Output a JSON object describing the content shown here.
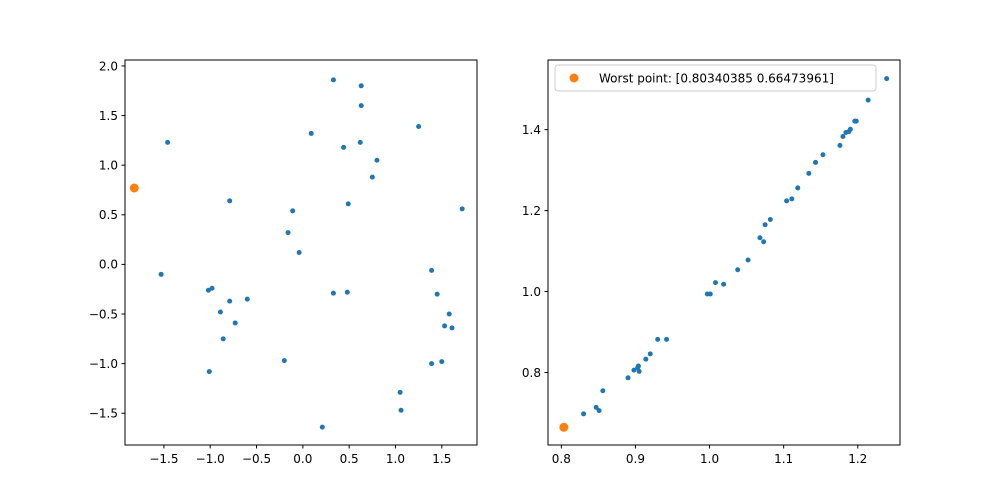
{
  "chart_data": [
    {
      "type": "scatter",
      "xlim": [
        -1.92,
        1.88
      ],
      "ylim": [
        -1.82,
        2.06
      ],
      "x_ticks": [
        -1.5,
        -1.0,
        -0.5,
        0.0,
        0.5,
        1.0,
        1.5
      ],
      "x_tick_labels": [
        "−1.5",
        "−1.0",
        "−0.5",
        "0.0",
        "0.5",
        "1.0",
        "1.5"
      ],
      "y_ticks": [
        -1.5,
        -1.0,
        -0.5,
        0.0,
        0.5,
        1.0,
        1.5,
        2.0
      ],
      "y_tick_labels": [
        "−1.5",
        "−1.0",
        "−0.5",
        "0.0",
        "0.5",
        "1.0",
        "1.5",
        "2.0"
      ],
      "grid": false,
      "series": [
        {
          "color": "#1f77b4",
          "marker": "small-dot",
          "x": [
            0.33,
            0.63,
            0.63,
            1.25,
            0.09,
            0.44,
            0.62,
            0.8,
            0.75,
            -1.46,
            -0.79,
            0.49,
            1.72,
            -0.11,
            -0.16,
            -0.04,
            -1.53,
            1.39,
            -1.02,
            -0.98,
            0.33,
            0.48,
            1.45,
            -0.79,
            -0.6,
            -0.89,
            -0.73,
            1.58,
            1.53,
            1.61,
            -0.86,
            -0.2,
            1.5,
            1.39,
            -1.01,
            1.05,
            1.06,
            0.21
          ],
          "y": [
            1.86,
            1.8,
            1.6,
            1.39,
            1.32,
            1.18,
            1.23,
            1.05,
            0.88,
            1.23,
            0.64,
            0.61,
            0.56,
            0.54,
            0.32,
            0.12,
            -0.1,
            -0.06,
            -0.26,
            -0.24,
            -0.29,
            -0.28,
            -0.3,
            -0.37,
            -0.35,
            -0.48,
            -0.59,
            -0.5,
            -0.62,
            -0.64,
            -0.75,
            -0.97,
            -0.98,
            -1.0,
            -1.08,
            -1.29,
            -1.47,
            -1.64
          ]
        },
        {
          "color": "#ff7f0e",
          "marker": "large-dot",
          "x": [
            -1.82
          ],
          "y": [
            0.77
          ]
        }
      ]
    },
    {
      "type": "scatter",
      "xlim": [
        0.782,
        1.257
      ],
      "ylim": [
        0.621,
        1.572
      ],
      "x_ticks": [
        0.8,
        0.9,
        1.0,
        1.1,
        1.2
      ],
      "x_tick_labels": [
        "0.8",
        "0.9",
        "1.0",
        "1.1",
        "1.2"
      ],
      "y_ticks": [
        0.8,
        1.0,
        1.2,
        1.4
      ],
      "y_tick_labels": [
        "0.8",
        "1.0",
        "1.2",
        "1.4"
      ],
      "grid": false,
      "legend_position": "top-left",
      "series": [
        {
          "color": "#1f77b4",
          "marker": "small-dot",
          "x": [
            0.83,
            0.847,
            0.851,
            0.856,
            0.89,
            0.898,
            0.904,
            0.903,
            0.905,
            0.914,
            0.92,
            0.93,
            0.942,
            0.997,
            1.001,
            1.008,
            1.019,
            1.038,
            1.052,
            1.068,
            1.073,
            1.075,
            1.082,
            1.104,
            1.111,
            1.119,
            1.134,
            1.143,
            1.153,
            1.176,
            1.18,
            1.184,
            1.188,
            1.19,
            1.196,
            1.198,
            1.214,
            1.239
          ],
          "y": [
            0.698,
            0.714,
            0.706,
            0.755,
            0.787,
            0.806,
            0.816,
            0.812,
            0.803,
            0.833,
            0.846,
            0.882,
            0.882,
            0.994,
            0.994,
            1.022,
            1.018,
            1.054,
            1.078,
            1.133,
            1.123,
            1.165,
            1.178,
            1.224,
            1.229,
            1.256,
            1.292,
            1.319,
            1.338,
            1.361,
            1.383,
            1.393,
            1.395,
            1.401,
            1.421,
            1.421,
            1.473,
            1.526
          ]
        },
        {
          "name": "Worst point: [0.80340385 0.66473961]",
          "color": "#ff7f0e",
          "marker": "large-dot",
          "x": [
            0.80340385
          ],
          "y": [
            0.66473961
          ]
        }
      ],
      "legend": [
        "Worst point: [0.80340385 0.66473961]"
      ]
    }
  ]
}
